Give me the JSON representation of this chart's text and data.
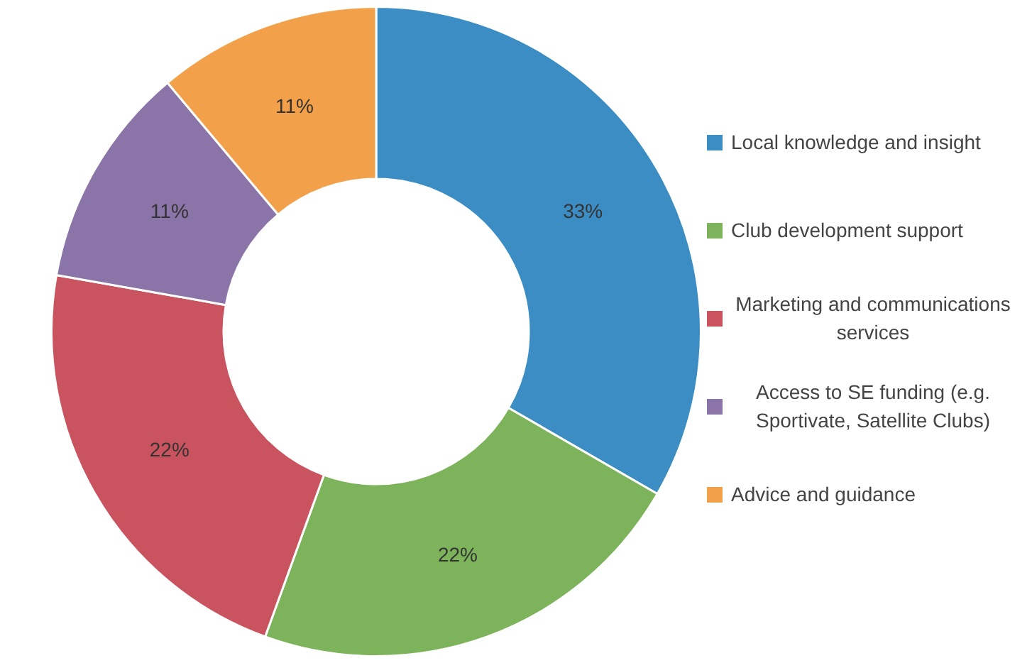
{
  "chart_data": {
    "type": "donut",
    "categories": [
      "Local knowledge and insight",
      "Club development support",
      "Marketing and communications services",
      "Access to SE funding (e.g. Sportivate, Satellite Clubs)",
      "Advice and guidance"
    ],
    "values": [
      33,
      22,
      22,
      11,
      11
    ],
    "colors": [
      "#3b8dc4",
      "#7db35a",
      "#c9545f",
      "#8b74a8",
      "#f3a04b"
    ],
    "value_labels": [
      "33%",
      "22%",
      "22%",
      "11%",
      "11%"
    ],
    "legend": "right"
  }
}
